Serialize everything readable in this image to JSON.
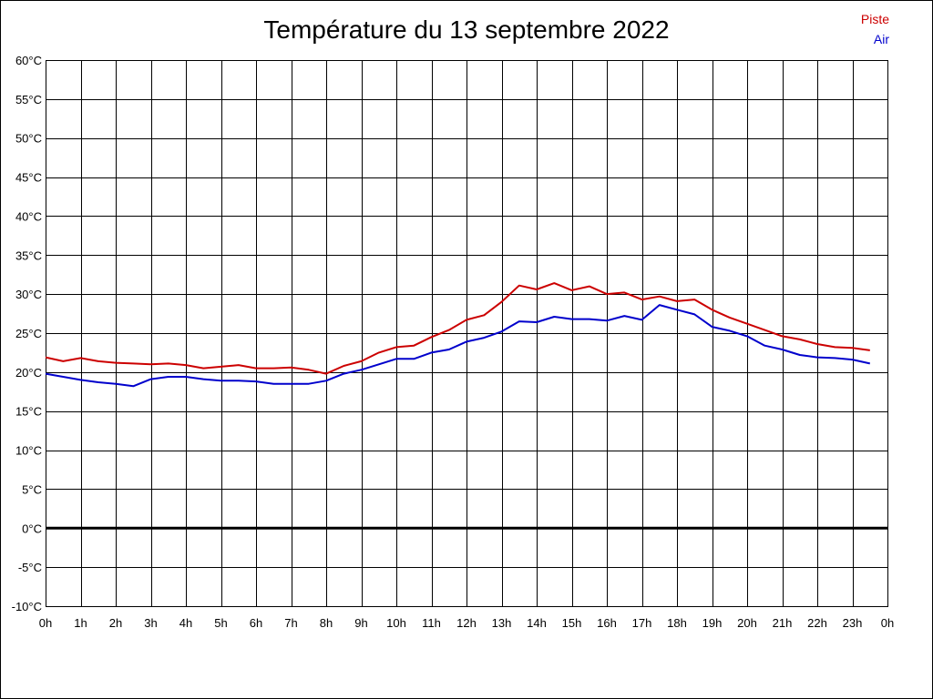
{
  "chart_data": {
    "type": "line",
    "title": "Température du 13 septembre 2022",
    "xlabel": "",
    "ylabel": "",
    "ylim": [
      -10,
      60
    ],
    "yticks": [
      "60°C",
      "55°C",
      "50°C",
      "45°C",
      "40°C",
      "35°C",
      "30°C",
      "25°C",
      "20°C",
      "15°C",
      "10°C",
      "5°C",
      "0°C",
      "-5°C",
      "-10°C"
    ],
    "ytick_values": [
      60,
      55,
      50,
      45,
      40,
      35,
      30,
      25,
      20,
      15,
      10,
      5,
      0,
      -5,
      -10
    ],
    "xticks": [
      "0h",
      "1h",
      "2h",
      "3h",
      "4h",
      "5h",
      "6h",
      "7h",
      "8h",
      "9h",
      "10h",
      "11h",
      "12h",
      "13h",
      "14h",
      "15h",
      "16h",
      "17h",
      "18h",
      "19h",
      "20h",
      "21h",
      "22h",
      "23h",
      "0h"
    ],
    "xlim": [
      0,
      24
    ],
    "grid": true,
    "zero_line": true,
    "legend_position": "top-right",
    "x": [
      0,
      0.5,
      1,
      1.5,
      2,
      2.5,
      3,
      3.5,
      4,
      4.5,
      5,
      5.5,
      6,
      6.5,
      7,
      7.5,
      8,
      8.5,
      9,
      9.5,
      10,
      10.5,
      11,
      11.5,
      12,
      12.5,
      13,
      13.5,
      14,
      14.5,
      15,
      15.5,
      16,
      16.5,
      17,
      17.5,
      18,
      18.5,
      19,
      19.5,
      20,
      20.5,
      21,
      21.5,
      22,
      22.5,
      23,
      23.5
    ],
    "series": [
      {
        "name": "Piste",
        "color": "#cc0000",
        "values": [
          21.9,
          21.4,
          21.8,
          21.4,
          21.2,
          21.1,
          21.0,
          21.1,
          20.9,
          20.5,
          20.7,
          20.9,
          20.5,
          20.5,
          20.6,
          20.3,
          19.8,
          20.8,
          21.4,
          22.5,
          23.2,
          23.4,
          24.5,
          25.4,
          26.7,
          27.3,
          29.0,
          31.1,
          30.6,
          31.4,
          30.5,
          31.0,
          30.0,
          30.2,
          29.3,
          29.7,
          29.1,
          29.3,
          28.0,
          27.0,
          26.2,
          25.4,
          24.6,
          24.2,
          23.6,
          23.2,
          23.1,
          22.8
        ]
      },
      {
        "name": "Air",
        "color": "#0000cc",
        "values": [
          19.8,
          19.4,
          19.0,
          18.7,
          18.5,
          18.2,
          19.1,
          19.4,
          19.4,
          19.1,
          18.9,
          18.9,
          18.8,
          18.5,
          18.5,
          18.5,
          18.9,
          19.8,
          20.3,
          21.0,
          21.7,
          21.7,
          22.5,
          22.9,
          23.9,
          24.4,
          25.2,
          26.5,
          26.4,
          27.1,
          26.8,
          26.8,
          26.6,
          27.2,
          26.7,
          28.6,
          28.0,
          27.4,
          25.8,
          25.3,
          24.6,
          23.4,
          22.9,
          22.2,
          21.9,
          21.8,
          21.6,
          21.1
        ]
      }
    ]
  }
}
